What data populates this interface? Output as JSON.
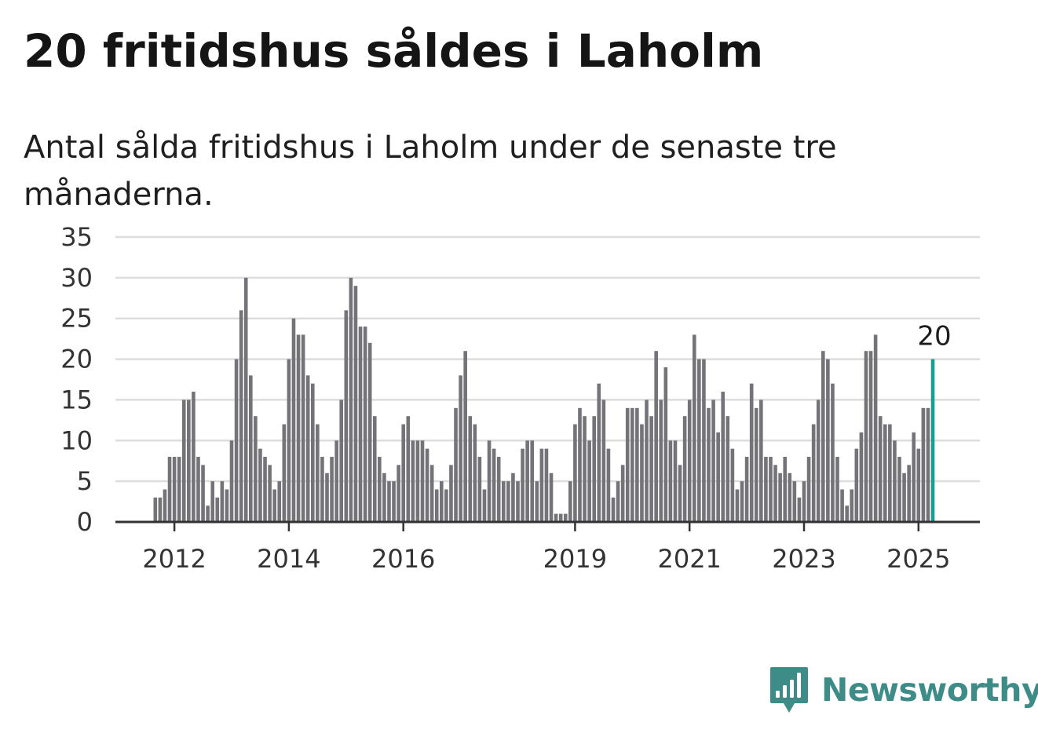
{
  "title": "20 fritidshus såldes i Laholm",
  "subtitle": "Antal sålda fritidshus i Laholm under de senaste tre månaderna.",
  "brand": {
    "name": "Newsworthy",
    "color": "#3d8c88",
    "icon": "chart-speech-bubble-icon"
  },
  "colors": {
    "bar": "#747378",
    "highlight": "#1a9e91",
    "grid": "#dddddd",
    "axis": "#333333"
  },
  "chart_data": {
    "type": "bar",
    "title": "20 fritidshus såldes i Laholm",
    "subtitle": "Antal sålda fritidshus i Laholm under de senaste tre månaderna.",
    "xlabel": "",
    "ylabel": "",
    "ylim": [
      0,
      35
    ],
    "yticks": [
      0,
      5,
      10,
      15,
      20,
      25,
      30,
      35
    ],
    "grid": "horizontal",
    "x_start": "2011-09",
    "x_step": "month",
    "xtick_labels": [
      {
        "label": "2012",
        "index": 4
      },
      {
        "label": "2014",
        "index": 28
      },
      {
        "label": "2016",
        "index": 52
      },
      {
        "label": "2019",
        "index": 88
      },
      {
        "label": "2021",
        "index": 112
      },
      {
        "label": "2023",
        "index": 136
      },
      {
        "label": "2025",
        "index": 160
      }
    ],
    "values": [
      3,
      3,
      4,
      8,
      8,
      8,
      15,
      15,
      16,
      8,
      7,
      2,
      5,
      3,
      5,
      4,
      10,
      20,
      26,
      30,
      18,
      13,
      9,
      8,
      7,
      4,
      5,
      12,
      20,
      25,
      23,
      23,
      18,
      17,
      12,
      8,
      6,
      8,
      10,
      15,
      26,
      30,
      29,
      24,
      24,
      22,
      13,
      8,
      6,
      5,
      5,
      7,
      12,
      13,
      10,
      10,
      10,
      9,
      7,
      4,
      5,
      4,
      7,
      14,
      18,
      21,
      13,
      12,
      8,
      4,
      10,
      9,
      8,
      5,
      5,
      6,
      5,
      9,
      10,
      10,
      5,
      9,
      9,
      6,
      1,
      1,
      1,
      5,
      12,
      14,
      13,
      10,
      13,
      17,
      15,
      9,
      3,
      5,
      7,
      14,
      14,
      14,
      12,
      15,
      13,
      21,
      15,
      19,
      10,
      10,
      7,
      13,
      15,
      23,
      20,
      20,
      14,
      15,
      11,
      16,
      13,
      9,
      4,
      5,
      8,
      17,
      14,
      15,
      8,
      8,
      7,
      6,
      8,
      6,
      5,
      3,
      5,
      8,
      12,
      15,
      21,
      20,
      17,
      8,
      4,
      2,
      4,
      9,
      11,
      21,
      21,
      23,
      13,
      12,
      12,
      10,
      8,
      6,
      7,
      11,
      9,
      14,
      14,
      20
    ],
    "highlight": {
      "index": 163,
      "label": "20"
    }
  }
}
